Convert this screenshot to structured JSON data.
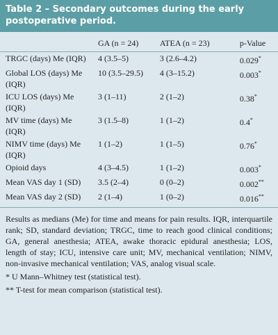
{
  "header": {
    "title": "Table 2 – Secondary outcomes during the early postoperative period."
  },
  "table": {
    "columns": [
      "",
      "GA (n = 24)",
      "ATEA (n = 23)",
      "p-Value"
    ],
    "rows": [
      {
        "label": "TRGC (days) Me (IQR)",
        "ga": "4 (3.5–5)",
        "atea": "3 (2.6–4.2)",
        "p": "0.029",
        "sup": "*"
      },
      {
        "label": "Global LOS (days) Me (IQR)",
        "ga": "10 (3.5–29.5)",
        "atea": "4 (3–15.2)",
        "p": "0.003",
        "sup": "*"
      },
      {
        "label": "ICU LOS (days) Me (IQR)",
        "ga": "3 (1–11)",
        "atea": "2 (1–2)",
        "p": "0.38",
        "sup": "*"
      },
      {
        "label": "MV time (days) Me (IQR)",
        "ga": "3 (1.5–8)",
        "atea": "1 (1–2)",
        "p": "0.4",
        "sup": "*"
      },
      {
        "label": "NIMV time (days) Me (IQR)",
        "ga": "1 (1–2)",
        "atea": "1 (1–5)",
        "p": "0.76",
        "sup": "*"
      },
      {
        "label": "Opioid days",
        "ga": "4 (3–4.5)",
        "atea": "1 (1–2)",
        "p": "0.003",
        "sup": "*"
      },
      {
        "label": "Mean VAS day 1 (SD)",
        "ga": "3.5 (2–4)",
        "atea": "0 (0–2)",
        "p": "0.002",
        "sup": "**"
      },
      {
        "label": "Mean VAS day 2 (SD)",
        "ga": "2 (1–4)",
        "atea": "1 (0–2)",
        "p": "0.016",
        "sup": "**"
      }
    ]
  },
  "notes": "Results as medians (Me) for time and means for pain results. IQR, interquartile rank; SD, standard deviation; TRGC, time to reach good clinical conditions; GA, general anesthesia; ATEA, awake thoracic epidural anesthesia; LOS, length of stay; ICU, intensive care unit; MV, mechanical ventilation; NIMV, non-invasive mechanical ventilation; VAS, analog visual scale.",
  "footnotes": [
    {
      "marker": "*",
      "text": "U Mann–Whitney test (statistical test)."
    },
    {
      "marker": "**",
      "text": "T-test for mean comparison (statistical test)."
    }
  ]
}
